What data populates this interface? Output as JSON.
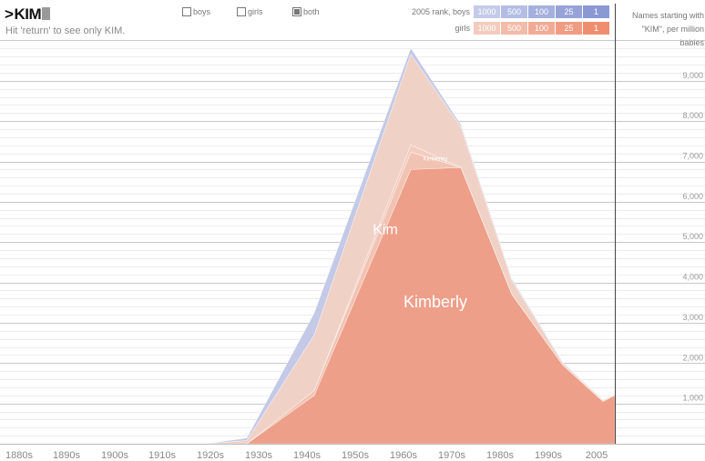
{
  "query": {
    "prompt": ">",
    "text": "KIM",
    "hint": "Hit 'return' to see only KIM."
  },
  "gender_options": [
    {
      "label": "boys",
      "checked": false
    },
    {
      "label": "girls",
      "checked": false
    },
    {
      "label": "both",
      "checked": true
    }
  ],
  "rank_legend": {
    "boys_label": "2005 rank, boys",
    "girls_label": "girls",
    "levels": [
      "1000",
      "500",
      "100",
      "25",
      "1"
    ],
    "boys_colors": [
      "#c4cbe8",
      "#b4bde3",
      "#a5b0dd",
      "#97a3d8",
      "#8a98d4"
    ],
    "girls_colors": [
      "#f3ccbd",
      "#f2bca9",
      "#f1ab95",
      "#f09c82",
      "#ef8e6f"
    ]
  },
  "sidebar_label": "Names starting with \"KIM\", per million babies",
  "chart_data": {
    "type": "area",
    "stacked": true,
    "x": [
      "1880s",
      "1890s",
      "1900s",
      "1910s",
      "1920s",
      "1930s",
      "1940s",
      "1950s",
      "1960s",
      "1970s",
      "1980s",
      "1990s",
      "2000s",
      "2005"
    ],
    "xlabels": [
      "1880s",
      "1890s",
      "1900s",
      "1910s",
      "1920s",
      "1930s",
      "1940s",
      "1950s",
      "1960s",
      "1970s",
      "1980s",
      "1990s",
      "2005"
    ],
    "yticks": [
      "1,000",
      "2,000",
      "3,000",
      "4,000",
      "5,000",
      "6,000",
      "7,000",
      "8,000",
      "9,000"
    ],
    "ylim": [
      0,
      10100
    ],
    "series": [
      {
        "name": "Kimberly",
        "gender": "girl",
        "color": "#ee9f89",
        "values": [
          0,
          0,
          0,
          0,
          0,
          0,
          0,
          1200,
          6800,
          6850,
          3700,
          1950,
          1050,
          1200
        ]
      },
      {
        "name": "",
        "gender": "girl",
        "color": "#f1c3b3",
        "values": [
          0,
          0,
          0,
          0,
          0,
          0,
          0,
          120,
          430,
          0,
          0,
          0,
          0,
          0
        ]
      },
      {
        "name": "Kimberley",
        "gender": "girl",
        "color": "#f3cdbf",
        "values": [
          0,
          0,
          0,
          0,
          0,
          0,
          0,
          0,
          180,
          0,
          0,
          0,
          0,
          0
        ]
      },
      {
        "name": "Kim",
        "gender": "girl",
        "color": "#f0d1c6",
        "values": [
          0,
          0,
          0,
          0,
          0,
          0,
          80,
          1380,
          2250,
          1000,
          350,
          50,
          30,
          20
        ]
      },
      {
        "name": "",
        "gender": "boy",
        "color": "#c3c9e6",
        "values": [
          0,
          0,
          0,
          0,
          0,
          0,
          60,
          540,
          150,
          60,
          40,
          20,
          10,
          5
        ]
      }
    ],
    "labels": [
      {
        "text": "Kim",
        "x": "1950s",
        "y": 5200,
        "size": 16
      },
      {
        "text": "Kimberly",
        "x": "1960s",
        "y": 3380,
        "size": 18
      },
      {
        "text": "Kimberley",
        "x": "1960s",
        "y": 7020,
        "size": 6
      }
    ]
  }
}
